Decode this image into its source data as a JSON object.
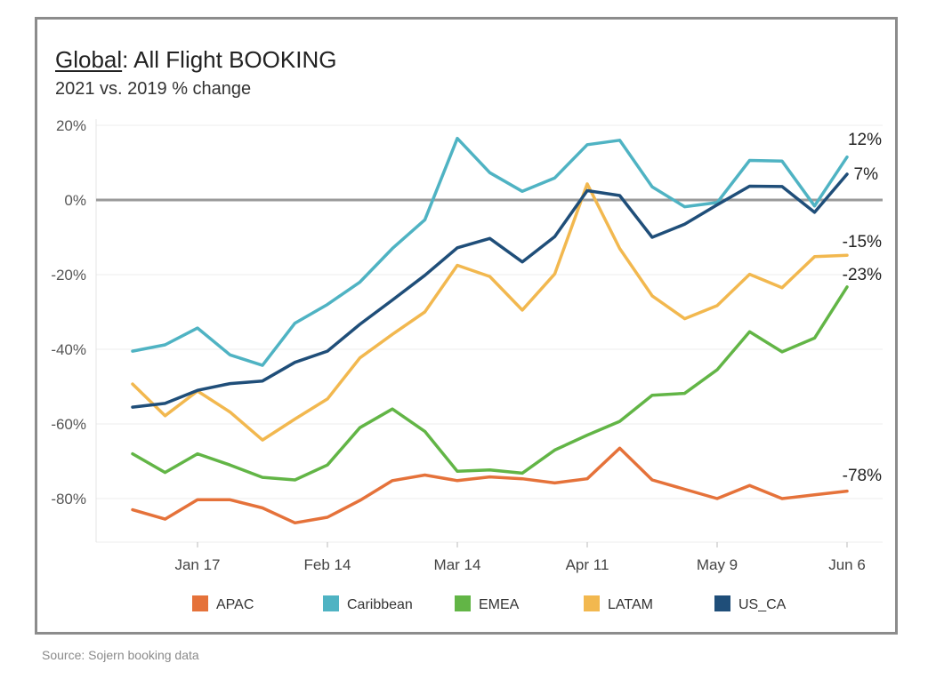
{
  "title_bold": "Global",
  "title_rest": ": All Flight BOOKING",
  "subtitle": "2021 vs. 2019 % change",
  "source": "Source: Sojern booking data",
  "chart_data": {
    "type": "line",
    "title": "Global: All Flight BOOKING",
    "subtitle": "2021 vs. 2019 % change",
    "xlabel": "",
    "ylabel": "",
    "ylim": [
      -92,
      20
    ],
    "yticks": [
      20,
      0,
      -20,
      -40,
      -60,
      -80
    ],
    "ytick_labels": [
      "20%",
      "0%",
      "-20%",
      "-40%",
      "-60%",
      "-80%"
    ],
    "xtick_labels": [
      "Jan 17",
      "Feb 14",
      "Mar 14",
      "Apr 11",
      "May 9",
      "Jun 6"
    ],
    "xtick_indices": [
      2,
      6,
      10,
      14,
      18,
      22
    ],
    "x_count": 23,
    "reference_line": 0,
    "legend_position": "bottom",
    "series": [
      {
        "name": "APAC",
        "color": "#e5723a",
        "values": [
          -83,
          -85.5,
          -80.3,
          -80.3,
          -82.5,
          -86.5,
          -85,
          -80.5,
          -75.2,
          -73.7,
          -75.2,
          -74.2,
          -74.7,
          -75.8,
          -74.7,
          -66.5,
          -75,
          -77.5,
          -80,
          -76.5,
          -80,
          -79,
          -78
        ],
        "end_label": "-78%"
      },
      {
        "name": "Caribbean",
        "color": "#4fb3c3",
        "values": [
          -40.5,
          -38.8,
          -34.3,
          -41.5,
          -44.3,
          -33,
          -28,
          -22,
          -13,
          -5.3,
          16.5,
          7.3,
          2.3,
          5.9,
          14.8,
          16,
          3.5,
          -1.8,
          -0.7,
          10.6,
          10.4,
          -1.6,
          11.5
        ],
        "end_label": "12%"
      },
      {
        "name": "EMEA",
        "color": "#62b546",
        "values": [
          -68,
          -73,
          -68,
          -71,
          -74.3,
          -75,
          -71,
          -61,
          -56,
          -62,
          -72.7,
          -72.3,
          -73.2,
          -67,
          -63,
          -59.3,
          -52.3,
          -51.8,
          -45.5,
          -35.3,
          -40.7,
          -37,
          -23.3
        ],
        "end_label": "-23%"
      },
      {
        "name": "LATAM",
        "color": "#f2b84f",
        "values": [
          -49.3,
          -57.8,
          -51.2,
          -56.8,
          -64.3,
          -58.7,
          -53.3,
          -42.3,
          -36,
          -30,
          -17.5,
          -20.5,
          -29.5,
          -19.8,
          4.3,
          -13,
          -25.7,
          -31.8,
          -28.3,
          -19.9,
          -23.5,
          -15.2,
          -14.8
        ],
        "end_label": "-15%"
      },
      {
        "name": "US_CA",
        "color": "#1f4e79",
        "values": [
          -55.5,
          -54.5,
          -51,
          -49.2,
          -48.5,
          -43.5,
          -40.5,
          -33.3,
          -26.8,
          -20.2,
          -12.8,
          -10.3,
          -16.6,
          -9.8,
          2.5,
          1.2,
          -10,
          -6.5,
          -1.3,
          3.7,
          3.6,
          -3.3,
          6.9
        ],
        "end_label": "7%"
      }
    ]
  }
}
